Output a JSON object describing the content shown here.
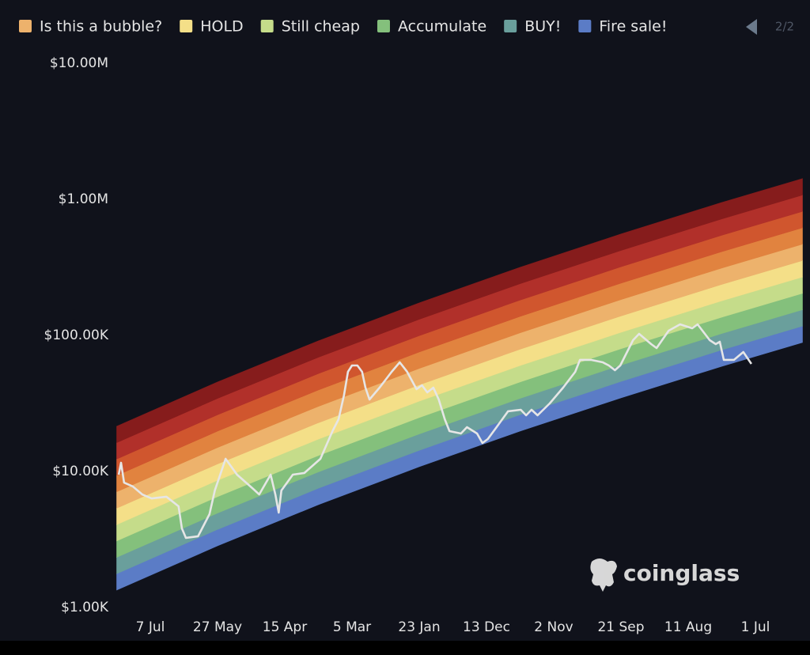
{
  "chart_data": {
    "type": "area",
    "yscale": "log",
    "grid": false,
    "legend_position": "top-left",
    "legend_page": "2/2",
    "watermark": "coinglass",
    "background": "#10121b",
    "xlim": [
      -0.5,
      9.7
    ],
    "xticks": [
      {
        "value": 0,
        "label": "7 Jul"
      },
      {
        "value": 1,
        "label": "27 May"
      },
      {
        "value": 2,
        "label": "15 Apr"
      },
      {
        "value": 3,
        "label": "5 Mar"
      },
      {
        "value": 4,
        "label": "23 Jan"
      },
      {
        "value": 5,
        "label": "13 Dec"
      },
      {
        "value": 6,
        "label": "2 Nov"
      },
      {
        "value": 7,
        "label": "21 Sep"
      },
      {
        "value": 8,
        "label": "11 Aug"
      },
      {
        "value": 9,
        "label": "1 Jul"
      }
    ],
    "ylim": [
      1000,
      10000000
    ],
    "yticks": [
      {
        "value": 1000,
        "label": "$1.00K"
      },
      {
        "value": 10000,
        "label": "$10.00K"
      },
      {
        "value": 100000,
        "label": "$100.00K"
      },
      {
        "value": 1000000,
        "label": "$1.00M"
      },
      {
        "value": 10000000,
        "label": "$10.00M"
      }
    ],
    "x": [
      -0.5,
      1,
      2.5,
      4,
      5.5,
      7,
      8.5,
      9.7
    ],
    "series": [
      {
        "name": "Fire sale!",
        "color": "#5b7cc6",
        "low": [
          1343,
          2841,
          5702,
          10840,
          19800,
          34750,
          59290,
          88720
        ],
        "high": [
          1772,
          3749,
          7524,
          14300,
          26130,
          45850,
          78230,
          117100
        ]
      },
      {
        "name": "BUY!",
        "color": "#6a9f9c",
        "low": [
          1772,
          3749,
          7524,
          14300,
          26130,
          45850,
          78230,
          117100
        ],
        "high": [
          2338,
          4946,
          9928,
          18870,
          34470,
          60500,
          103200,
          154500
        ]
      },
      {
        "name": "Accumulate",
        "color": "#84c07c",
        "low": [
          2338,
          4946,
          9928,
          18870,
          34470,
          60500,
          103200,
          154500
        ],
        "high": [
          3085,
          6527,
          13100,
          24900,
          45490,
          79840,
          136200,
          203800
        ]
      },
      {
        "name": "Still cheap",
        "color": "#c5dc8a",
        "low": [
          3085,
          6527,
          13100,
          24900,
          45490,
          79840,
          136200,
          203800
        ],
        "high": [
          4071,
          8612,
          17285,
          32860,
          60020,
          105300,
          179700,
          268900
        ]
      },
      {
        "name": "HOLD",
        "color": "#f4df88",
        "low": [
          4071,
          8612,
          17285,
          32860,
          60020,
          105300,
          179700,
          268900
        ],
        "high": [
          5372,
          11364,
          22808,
          43360,
          79200,
          139000,
          237200,
          354900
        ]
      },
      {
        "name": "Is this a bubble?",
        "color": "#edb26c",
        "low": [
          5372,
          11364,
          22808,
          43360,
          79200,
          139000,
          237200,
          354900
        ],
        "high": [
          7088,
          14995,
          30095,
          57210,
          104500,
          183400,
          312900,
          468300
        ]
      },
      {
        "color": "#e1833f",
        "low": [
          7088,
          14995,
          30095,
          57210,
          104500,
          183400,
          312900,
          468300
        ],
        "high": [
          9353,
          19785,
          39709,
          75490,
          137900,
          242000,
          412900,
          617900
        ]
      },
      {
        "color": "#d0562e",
        "low": [
          9353,
          19785,
          39709,
          75490,
          137900,
          242000,
          412900,
          617900
        ],
        "high": [
          12340,
          26110,
          52400,
          99620,
          181960,
          319400,
          544900,
          815300
        ]
      },
      {
        "color": "#b1302a",
        "low": [
          12340,
          26110,
          52400,
          99620,
          181960,
          319400,
          544900,
          815300
        ],
        "high": [
          16290,
          34450,
          69140,
          131400,
          240100,
          421400,
          718900,
          1075800
        ]
      },
      {
        "color": "#861c1c",
        "low": [
          16290,
          34450,
          69140,
          131400,
          240100,
          421400,
          718900,
          1075800
        ],
        "high": [
          21490,
          45460,
          91230,
          173400,
          316800,
          556000,
          948600,
          1419500
        ]
      }
    ],
    "price": {
      "type": "line",
      "color": "#e6e6e6",
      "x": [
        -0.47,
        -0.435,
        -0.39,
        -0.26,
        -0.12,
        0.02,
        0.24,
        0.42,
        0.47,
        0.53,
        0.71,
        0.88,
        0.96,
        1.12,
        1.29,
        1.53,
        1.62,
        1.79,
        1.86,
        1.91,
        1.95,
        2.12,
        2.29,
        2.53,
        2.71,
        2.8,
        2.88,
        2.94,
        3.0,
        3.08,
        3.15,
        3.2,
        3.26,
        3.41,
        3.59,
        3.71,
        3.82,
        3.96,
        4.04,
        4.12,
        4.21,
        4.29,
        4.38,
        4.45,
        4.62,
        4.71,
        4.86,
        4.94,
        5.02,
        5.15,
        5.32,
        5.51,
        5.59,
        5.67,
        5.76,
        5.94,
        6.14,
        6.32,
        6.39,
        6.56,
        6.73,
        6.82,
        6.91,
        6.99,
        7.18,
        7.27,
        7.45,
        7.53,
        7.71,
        7.88,
        8.06,
        8.14,
        8.32,
        8.41,
        8.47,
        8.53,
        8.68,
        8.82,
        8.94
      ],
      "values": [
        9480,
        11590,
        8290,
        7760,
        6780,
        6340,
        6520,
        5550,
        3815,
        3250,
        3340,
        4855,
        7255,
        12390,
        9480,
        7450,
        6780,
        9480,
        6780,
        4985,
        7255,
        9480,
        9740,
        12390,
        19800,
        24190,
        36150,
        54030,
        60120,
        60120,
        54030,
        41330,
        33810,
        41330,
        54030,
        63430,
        54030,
        40240,
        43020,
        38140,
        41330,
        33810,
        24190,
        19800,
        19010,
        21170,
        19010,
        16190,
        17310,
        21170,
        27670,
        28410,
        25870,
        28410,
        25870,
        31620,
        41330,
        54030,
        66050,
        66050,
        63430,
        60120,
        55490,
        60120,
        92290,
        102700,
        86300,
        80720,
        108400,
        120600,
        112800,
        120600,
        92290,
        86300,
        89840,
        66050,
        66050,
        75490,
        61760
      ]
    }
  }
}
